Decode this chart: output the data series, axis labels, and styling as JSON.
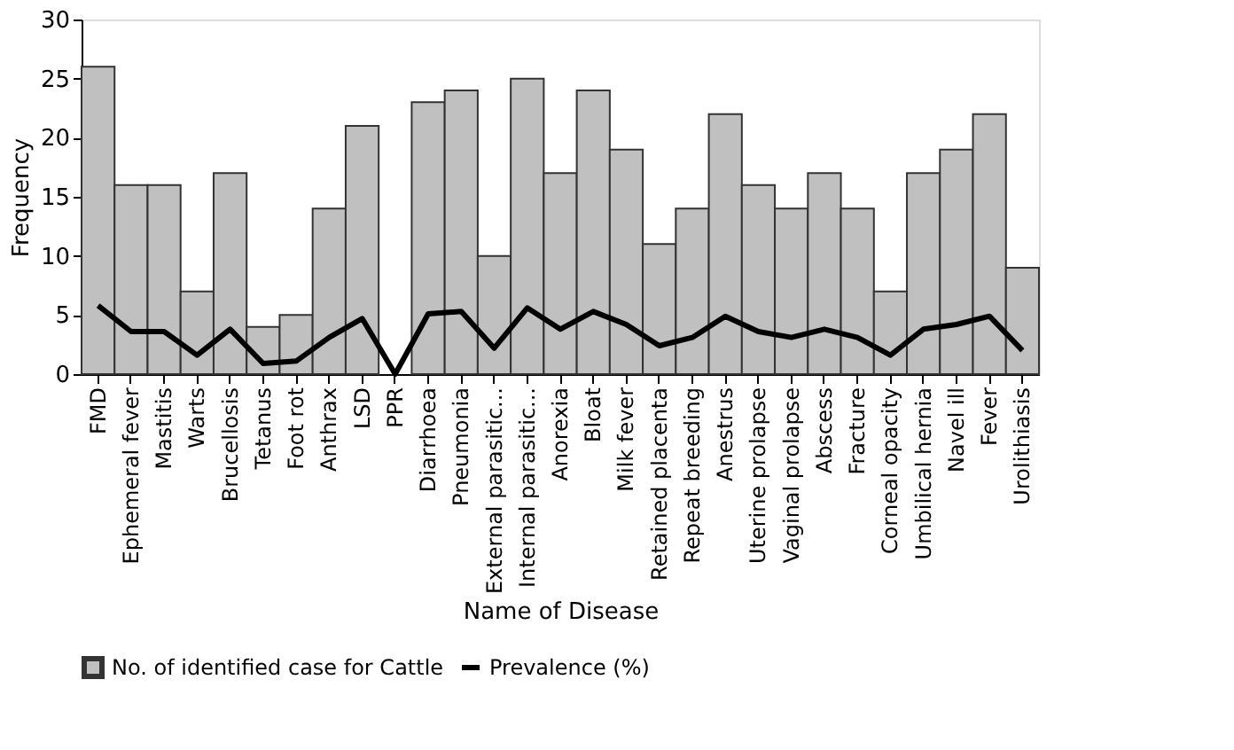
{
  "chart_data": {
    "type": "bar",
    "xlabel": "Name of Disease",
    "ylabel": "Frequency",
    "categories": [
      "FMD",
      "Ephemeral fever",
      "Mastitis",
      "Warts",
      "Brucellosis",
      "Tetanus",
      "Foot rot",
      "Anthrax",
      "LSD",
      "PPR",
      "Diarrhoea",
      "Pneumonia",
      "External parasitic...",
      "Internal parasitic...",
      "Anorexia",
      "Bloat",
      "Milk fever",
      "Retained placenta",
      "Repeat breeding",
      "Anestrus",
      "Uterine prolapse",
      "Vaginal prolapse",
      "Abscess",
      "Fracture",
      "Corneal opacity",
      "Umbilical hernia",
      "Navel ill",
      "Fever",
      "Urolithiasis"
    ],
    "series": [
      {
        "name": "No. of identified case for Cattle",
        "color": "#c0c0c0",
        "values": [
          26,
          16,
          16,
          7,
          17,
          4,
          5,
          14,
          21,
          0,
          23,
          24,
          10,
          25,
          17,
          24,
          19,
          11,
          14,
          22,
          16,
          14,
          17,
          14,
          7,
          17,
          19,
          22,
          9
        ]
      },
      {
        "name": "Prevalence (%)",
        "type": "line",
        "color": "#000000",
        "values": [
          5.8,
          3.6,
          3.6,
          1.6,
          3.8,
          0.9,
          1.1,
          3.1,
          4.7,
          0,
          5.1,
          5.3,
          2.2,
          5.6,
          3.8,
          5.3,
          4.2,
          2.4,
          3.1,
          4.9,
          3.6,
          3.1,
          3.8,
          3.1,
          1.6,
          3.8,
          4.2,
          4.9,
          2.0
        ]
      }
    ],
    "ylim": [
      0,
      30
    ],
    "yticks": [
      0,
      5,
      10,
      15,
      20,
      25,
      30
    ],
    "grid": false,
    "legend": "bottom",
    "marker": "none",
    "line_style": "solid"
  }
}
